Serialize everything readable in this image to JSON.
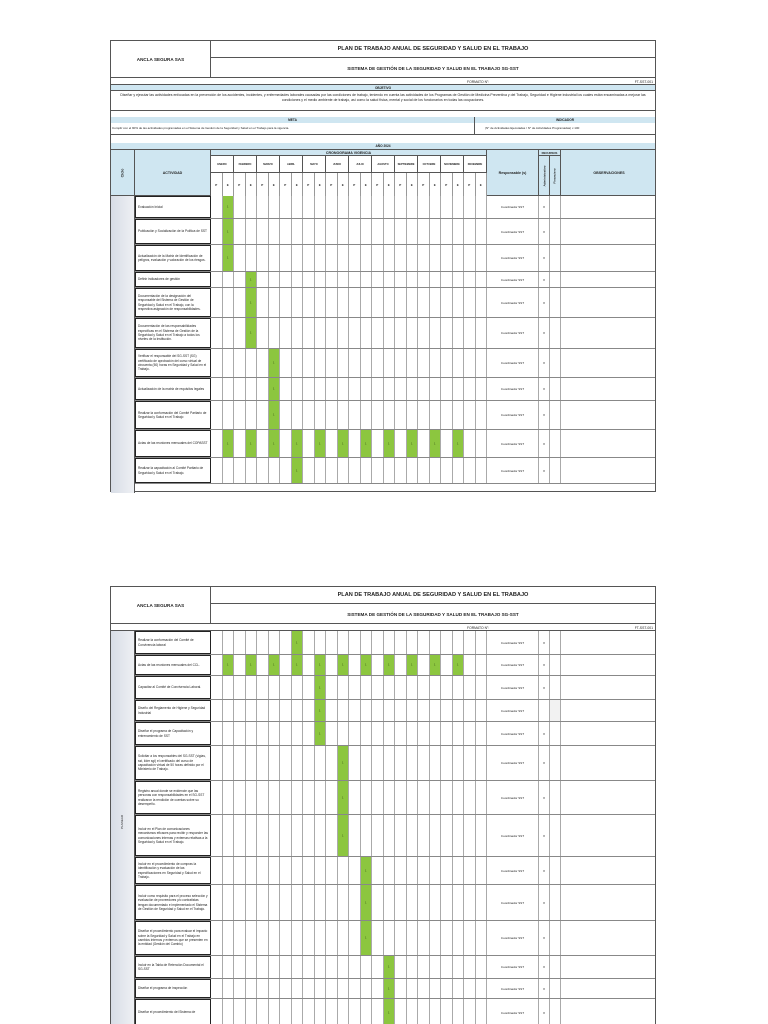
{
  "header": {
    "company": "ANCLA SEGURA SAS",
    "plan_title": "PLAN DE TRABAJO ANUAL DE SEGURIDAD Y SALUD EN EL TRABAJO",
    "system_title": "SISTEMA DE GESTIÓN DE LA SEGURIDAD Y SALUD EN EL TRABAJO SG-SST",
    "formato_label": "FORMATO N°:",
    "formato_value": "FT-SST-001"
  },
  "objetivo": {
    "label": "OBJETIVO",
    "text": "Diseñar y ejecutar las actividades enfocadas en la prevención de los accidentes, incidentes, y enfermedades laborales causadas por las condiciones de trabajo, teniendo en cuenta las actividades de los Programas de Gestión de Medicina Preventiva y del Trabajo, Seguridad e Higiene industrial los cuales están encaminadas a mejorar las condiciones y el medio ambiente de trabajo, así como la salud física, mental y social de los funcionarios en todas las ocupaciones."
  },
  "meta": {
    "label": "META",
    "text": "Cumplir con el 90% de las actividades programadas en el Sistema de Gestión de la Seguridad y Salud en el Trabajo para la vigencia."
  },
  "indicador": {
    "label": "INDICADOR",
    "text": "(N° de Actividades Ejecutadas / N° de Actividades Programadas) x 100"
  },
  "year_label": "AÑO 2024",
  "columns": {
    "ciclo": "Ciclo",
    "actividad": "ACTIVIDAD",
    "cronograma": "CRONOGRAMA VIGENCIA",
    "responsable": "Responsable (s)",
    "recursos": "RECURSOS",
    "administrativo": "Administrativo",
    "financiero": "Financiero",
    "observaciones": "OBSERVACIONES",
    "months": [
      "ENERO",
      "FEBRERO",
      "MARZO",
      "ABRIL",
      "MAYO",
      "JUNIO",
      "JULIO",
      "AGOSTO",
      "SEPTIEMBRE",
      "OCTUBRE",
      "NOVIEMBRE",
      "DICIEMBRE"
    ],
    "p_label": "P",
    "e_label": "E"
  },
  "colors": {
    "band": "#cfe6f1",
    "scheduled": "#8cc63f"
  },
  "sheet1": {
    "ciclo": "",
    "rows": [
      {
        "activity": "Evaluación Inicial",
        "marks": [
          2
        ],
        "responsable": "Coordinador SST",
        "adm": "x",
        "fin_shade": false
      },
      {
        "activity": "Publicación y Socialización de la Política de SST",
        "marks": [
          2
        ],
        "responsable": "Coordinador SST",
        "adm": "x",
        "fin_shade": false
      },
      {
        "activity": "Actualización de la Matriz de Identificación de peligros, evaluación y valoración de los riesgos.",
        "marks": [
          2
        ],
        "responsable": "Coordinador SST",
        "adm": "x",
        "fin_shade": false
      },
      {
        "activity": "Definir indicadores de gestión",
        "marks": [
          4
        ],
        "responsable": "Coordinador SST",
        "adm": "x",
        "fin_shade": false
      },
      {
        "activity": "Documentación de la designación del responsable del Sistema de Gestión de Seguridad y Salud en el Trabajo, con la respectiva asignación de responsabilidades.",
        "marks": [
          4
        ],
        "responsable": "Coordinador SST",
        "adm": "x",
        "fin_shade": false
      },
      {
        "activity": "Documentación de las responsabilidades específicas en el Sistema de Gestión de la Seguridad y Salud en el Trabajo a todos los niveles de la Institución.",
        "marks": [
          4
        ],
        "responsable": "Coordinador SST",
        "adm": "x",
        "fin_shade": false
      },
      {
        "activity": "Verificar el responsable del SG-SST (SG) certificado de aprobación del curso virtual de cincuenta (50) horas en Seguridad y Salud en el Trabajo.",
        "marks": [
          6
        ],
        "responsable": "Coordinador SST",
        "adm": "x",
        "fin_shade": false
      },
      {
        "activity": "Actualización de la matriz de requisitos legales",
        "marks": [
          6
        ],
        "responsable": "Coordinador SST",
        "adm": "x",
        "fin_shade": false
      },
      {
        "activity": "Realizar la conformación del Comité Paritario de Seguridad y Salud en el Trabajo",
        "marks": [
          6
        ],
        "responsable": "Coordinador SST",
        "adm": "x",
        "fin_shade": false
      },
      {
        "activity": "Actas de las reuniones mensuales del COPASST",
        "marks": [
          2,
          4,
          6,
          8,
          10,
          12,
          14,
          16,
          18,
          20,
          22
        ],
        "responsable": "Coordinador SST",
        "adm": "x",
        "fin_shade": false
      },
      {
        "activity": "Realizar la capacitación al Comité Paritario de Seguridad y Salud en el Trabajo.",
        "marks": [
          8
        ],
        "responsable": "Coordinador SST",
        "adm": "x",
        "fin_shade": false
      }
    ]
  },
  "sheet2": {
    "ciclo": "PLANEAR",
    "rows": [
      {
        "activity": "Realizar la conformación del Comité de Convivencia laboral",
        "marks": [
          8
        ],
        "responsable": "Coordinador SST",
        "adm": "x",
        "fin_shade": false
      },
      {
        "activity": "Actas de las reuniones mensuales del CCL.",
        "marks": [
          2,
          4,
          6,
          8,
          10,
          12,
          14,
          16,
          18,
          20,
          22
        ],
        "responsable": "Coordinador SST",
        "adm": "x",
        "fin_shade": false
      },
      {
        "activity": "Capacitar al Comité de Convivencia Laboral.",
        "marks": [
          10
        ],
        "responsable": "Coordinador SST",
        "adm": "x",
        "fin_shade": false
      },
      {
        "activity": "Diseño del Reglamento de Higiene y Seguridad Industrial",
        "marks": [
          10
        ],
        "responsable": "Coordinador SST",
        "adm": "",
        "fin_shade": true
      },
      {
        "activity": "Diseñar el programa de Capacitación y entrenamiento de SST",
        "marks": [
          10
        ],
        "responsable": "Coordinador SST",
        "adm": "x",
        "fin_shade": false
      },
      {
        "activity": "Solicitar a los responsables del SG-SST (vigías, sst, líder sgi) el certificado del curso de capacitación virtual de 50 horas definido por el Ministerio de Trabajo.",
        "marks": [
          12
        ],
        "responsable": "Coordinador SST",
        "adm": "x",
        "fin_shade": false
      },
      {
        "activity": "Registro anual donde se evidencie que las personas con responsabilidades en el SG-SST realizaron la rendición de cuentas sobre su desempeño.",
        "marks": [
          12
        ],
        "responsable": "Coordinador SST",
        "adm": "x",
        "fin_shade": false
      },
      {
        "activity": "Incluir en el Plan de comunicaciones mecanismos eficaces para recibir y responder las comunicaciones internas y externas relativas a la Seguridad y Salud en el Trabajo.",
        "marks": [
          12
        ],
        "responsable": "Coordinador SST",
        "adm": "x",
        "fin_shade": false
      },
      {
        "activity": "Incluir en el procedimiento de compras la identificación y evaluación de las especificaciones en Seguridad y Salud en el Trabajo.",
        "marks": [
          14
        ],
        "responsable": "Coordinador SST",
        "adm": "x",
        "fin_shade": false
      },
      {
        "activity": "Incluir como requisito para el proceso selección y evaluación de proveedores y/o contratistas tengan documentado e implementado el Sistema de Gestión de Seguridad y Salud en el Trabajo.",
        "marks": [
          14
        ],
        "responsable": "Coordinador SST",
        "adm": "x",
        "fin_shade": false
      },
      {
        "activity": "Diseñar el procedimiento para evaluar el impacto sobre la Seguridad y Salud en el Trabajo en cambios internos y externos que se presenten en la entidad (Gestión del Cambio)",
        "marks": [
          14
        ],
        "responsable": "Coordinador SST",
        "adm": "x",
        "fin_shade": false
      },
      {
        "activity": "Incluir en la Tabla de Retención Documental el SG-SST",
        "marks": [
          16
        ],
        "responsable": "Coordinador SST",
        "adm": "x",
        "fin_shade": false
      },
      {
        "activity": "Diseñar el programa de inspección",
        "marks": [
          16
        ],
        "responsable": "Coordinador SST",
        "adm": "x",
        "fin_shade": false
      },
      {
        "activity": "Diseñar el procedimiento del Sistema de",
        "marks": [
          16
        ],
        "responsable": "Coordinador SST",
        "adm": "x",
        "fin_shade": false
      }
    ]
  }
}
